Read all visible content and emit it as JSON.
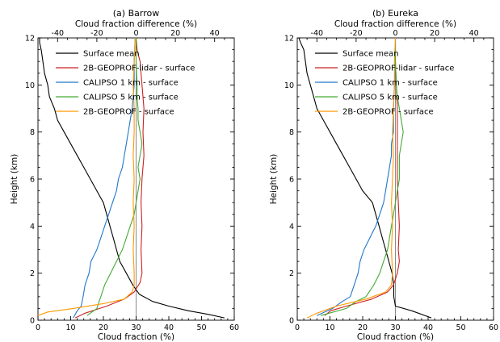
{
  "chart_data": [
    {
      "type": "line",
      "title": "(a) Barrow",
      "xlabel": "Cloud fraction (%)",
      "x2label": "Cloud fraction difference (%)",
      "ylabel": "Height (km)",
      "xlim": [
        0,
        60
      ],
      "x2lim": [
        -50,
        50
      ],
      "ylim": [
        0,
        12
      ],
      "xticks": [
        0,
        10,
        20,
        30,
        40,
        50,
        60
      ],
      "x2ticks": [
        -40,
        -20,
        0,
        20,
        40
      ],
      "yticks": [
        0,
        2,
        4,
        6,
        8,
        10,
        12
      ],
      "reference_line_x": 30,
      "legend_position": "top-right",
      "series": [
        {
          "name": "Surface mean",
          "color": "#000000",
          "axis": "bottom",
          "points": [
            [
              0.5,
              12
            ],
            [
              0.5,
              11.8
            ],
            [
              1,
              11.5
            ],
            [
              1.5,
              11
            ],
            [
              2,
              10.5
            ],
            [
              3,
              10
            ],
            [
              3.5,
              9.5
            ],
            [
              5,
              9
            ],
            [
              6,
              8.5
            ],
            [
              8,
              8
            ],
            [
              10,
              7.5
            ],
            [
              12,
              7
            ],
            [
              14,
              6.5
            ],
            [
              16,
              6
            ],
            [
              18,
              5.5
            ],
            [
              20,
              5
            ],
            [
              21,
              4.5
            ],
            [
              22,
              4
            ],
            [
              23,
              3.5
            ],
            [
              24,
              3
            ],
            [
              25,
              2.5
            ],
            [
              27,
              2
            ],
            [
              29,
              1.5
            ],
            [
              31,
              1.1
            ],
            [
              35,
              0.8
            ],
            [
              40,
              0.6
            ],
            [
              46,
              0.4
            ],
            [
              52,
              0.25
            ],
            [
              57,
              0.1
            ]
          ]
        },
        {
          "name": "2B-GEOPROF-lidar - surface",
          "color": "#cc2222",
          "axis": "top",
          "points": [
            [
              -31,
              0.1
            ],
            [
              -26,
              0.3
            ],
            [
              -15,
              0.6
            ],
            [
              -6,
              0.9
            ],
            [
              -1,
              1.2
            ],
            [
              2,
              1.6
            ],
            [
              3,
              2
            ],
            [
              2.5,
              3
            ],
            [
              3,
              4
            ],
            [
              2.5,
              5
            ],
            [
              3,
              6
            ],
            [
              4,
              7
            ],
            [
              3.5,
              8
            ],
            [
              4,
              9
            ],
            [
              3,
              10
            ],
            [
              2,
              11
            ],
            [
              0.5,
              11.5
            ],
            [
              0,
              12
            ]
          ]
        },
        {
          "name": "CALIPSO 1 km - surface",
          "color": "#2277cc",
          "axis": "top",
          "points": [
            [
              -32,
              0.1
            ],
            [
              -30,
              0.4
            ],
            [
              -28,
              0.6
            ],
            [
              -27,
              1
            ],
            [
              -26,
              1.5
            ],
            [
              -24,
              2
            ],
            [
              -23,
              2.5
            ],
            [
              -20,
              3
            ],
            [
              -18,
              3.5
            ],
            [
              -16,
              4
            ],
            [
              -14,
              4.5
            ],
            [
              -12,
              5
            ],
            [
              -10,
              5.5
            ],
            [
              -9,
              6
            ],
            [
              -7,
              6.5
            ],
            [
              -6,
              7
            ],
            [
              -5,
              7.5
            ],
            [
              -4,
              8
            ],
            [
              -3,
              8.5
            ],
            [
              -2,
              9
            ],
            [
              -1.5,
              9.5
            ],
            [
              -1,
              10
            ],
            [
              -1,
              11
            ],
            [
              -0.5,
              12
            ]
          ]
        },
        {
          "name": "CALIPSO 5 km - surface",
          "color": "#44aa33",
          "axis": "top",
          "points": [
            [
              -25,
              0.2
            ],
            [
              -20,
              0.5
            ],
            [
              -18,
              1
            ],
            [
              -16,
              1.5
            ],
            [
              -13,
              2
            ],
            [
              -10,
              2.5
            ],
            [
              -7,
              3
            ],
            [
              -5,
              3.5
            ],
            [
              -3,
              4
            ],
            [
              -1,
              4.5
            ],
            [
              0,
              5
            ],
            [
              1,
              5.5
            ],
            [
              2,
              6
            ],
            [
              1,
              6.5
            ],
            [
              2,
              7
            ],
            [
              3,
              7.5
            ],
            [
              2,
              8
            ],
            [
              1,
              8.5
            ],
            [
              1,
              9
            ],
            [
              0.5,
              9.5
            ],
            [
              0.5,
              10
            ],
            [
              0,
              11
            ],
            [
              0,
              12
            ]
          ]
        },
        {
          "name": "2B-GEOPROF - surface",
          "color": "#ff9900",
          "axis": "top",
          "points": [
            [
              -50,
              0.2
            ],
            [
              -45,
              0.35
            ],
            [
              -32,
              0.5
            ],
            [
              -17,
              0.7
            ],
            [
              -6,
              0.9
            ],
            [
              -2,
              1.2
            ],
            [
              -1,
              1.5
            ],
            [
              -1,
              2
            ],
            [
              -1.5,
              3
            ],
            [
              -1,
              4
            ],
            [
              -1.5,
              5
            ],
            [
              -1,
              6
            ],
            [
              -1.5,
              7
            ],
            [
              -1,
              8
            ],
            [
              -1,
              9
            ],
            [
              -1.5,
              10
            ],
            [
              -1,
              11
            ],
            [
              -0.5,
              12
            ]
          ]
        }
      ]
    },
    {
      "type": "line",
      "title": "(b) Eureka",
      "xlabel": "Cloud fraction (%)",
      "x2label": "Cloud fraction difference (%)",
      "ylabel": "Height (km)",
      "xlim": [
        0,
        60
      ],
      "x2lim": [
        -50,
        50
      ],
      "ylim": [
        0,
        12
      ],
      "xticks": [
        0,
        10,
        20,
        30,
        40,
        50,
        60
      ],
      "x2ticks": [
        -40,
        -20,
        0,
        20,
        40
      ],
      "yticks": [
        0,
        2,
        4,
        6,
        8,
        10,
        12
      ],
      "reference_line_x": 30,
      "legend_position": "top-right",
      "series": [
        {
          "name": "Surface mean",
          "color": "#000000",
          "axis": "bottom",
          "points": [
            [
              0.5,
              12
            ],
            [
              1,
              11.8
            ],
            [
              2,
              11.5
            ],
            [
              2.5,
              11
            ],
            [
              3,
              10.5
            ],
            [
              4,
              10
            ],
            [
              5,
              9.5
            ],
            [
              6,
              9
            ],
            [
              8,
              8.5
            ],
            [
              10,
              8
            ],
            [
              12,
              7.5
            ],
            [
              14,
              7
            ],
            [
              16,
              6.5
            ],
            [
              18,
              6
            ],
            [
              20,
              5.5
            ],
            [
              23,
              5
            ],
            [
              24,
              4.5
            ],
            [
              25,
              4
            ],
            [
              26,
              3.5
            ],
            [
              27,
              3
            ],
            [
              28,
              2.5
            ],
            [
              29,
              2
            ],
            [
              29.5,
              1.5
            ],
            [
              29.5,
              1
            ],
            [
              30,
              0.6
            ],
            [
              35,
              0.4
            ],
            [
              41,
              0.1
            ]
          ]
        },
        {
          "name": "2B-GEOPROF-lidar - surface",
          "color": "#cc2222",
          "axis": "top",
          "points": [
            [
              -36,
              0.2
            ],
            [
              -33,
              0.4
            ],
            [
              -25,
              0.6
            ],
            [
              -12,
              0.9
            ],
            [
              -4,
              1.2
            ],
            [
              -1,
              1.5
            ],
            [
              1,
              2
            ],
            [
              2,
              2.5
            ],
            [
              1.5,
              3
            ],
            [
              2,
              4
            ],
            [
              1.5,
              5
            ],
            [
              1,
              6
            ],
            [
              1,
              7
            ],
            [
              1,
              8
            ],
            [
              1,
              9
            ],
            [
              0.5,
              10
            ],
            [
              0,
              11
            ],
            [
              0,
              12
            ]
          ]
        },
        {
          "name": "CALIPSO 1 km - surface",
          "color": "#2277cc",
          "axis": "top",
          "points": [
            [
              -40,
              0.2
            ],
            [
              -32,
              0.5
            ],
            [
              -27,
              0.8
            ],
            [
              -23,
              1
            ],
            [
              -21,
              1.5
            ],
            [
              -19,
              2
            ],
            [
              -18,
              2.5
            ],
            [
              -16,
              3
            ],
            [
              -13,
              3.5
            ],
            [
              -10,
              4
            ],
            [
              -8,
              4.5
            ],
            [
              -6,
              5
            ],
            [
              -5,
              5.5
            ],
            [
              -4,
              6
            ],
            [
              -3,
              6.5
            ],
            [
              -2,
              7
            ],
            [
              -2,
              7.5
            ],
            [
              -1,
              8
            ],
            [
              -1,
              8.5
            ],
            [
              -1,
              9
            ],
            [
              -0.5,
              10
            ],
            [
              0,
              11
            ],
            [
              0,
              12
            ]
          ]
        },
        {
          "name": "CALIPSO 5 km - surface",
          "color": "#44aa33",
          "axis": "top",
          "points": [
            [
              -38,
              0.2
            ],
            [
              -25,
              0.5
            ],
            [
              -20,
              0.8
            ],
            [
              -15,
              1
            ],
            [
              -11,
              1.5
            ],
            [
              -8,
              2
            ],
            [
              -6,
              2.5
            ],
            [
              -4,
              3
            ],
            [
              -3,
              3.5
            ],
            [
              -2,
              4
            ],
            [
              -1,
              4.5
            ],
            [
              0,
              5
            ],
            [
              1,
              5.5
            ],
            [
              2,
              6
            ],
            [
              2,
              7
            ],
            [
              3,
              7.5
            ],
            [
              4,
              8
            ],
            [
              3,
              8.5
            ],
            [
              2,
              9
            ],
            [
              1,
              9.5
            ],
            [
              0.5,
              10
            ],
            [
              0,
              11
            ],
            [
              0,
              12
            ]
          ]
        },
        {
          "name": "2B-GEOPROF - surface",
          "color": "#ff9900",
          "axis": "top",
          "points": [
            [
              -45,
              0.1
            ],
            [
              -40,
              0.3
            ],
            [
              -30,
              0.6
            ],
            [
              -15,
              0.9
            ],
            [
              -5,
              1.2
            ],
            [
              -2,
              1.5
            ],
            [
              -1.5,
              2
            ],
            [
              -2,
              3
            ],
            [
              -1.5,
              4
            ],
            [
              -2,
              5
            ],
            [
              -1.5,
              6
            ],
            [
              -1,
              7
            ],
            [
              -1.5,
              8
            ],
            [
              -1,
              9
            ],
            [
              -0.5,
              10
            ],
            [
              -0.5,
              11
            ],
            [
              0,
              12
            ]
          ]
        }
      ]
    }
  ]
}
